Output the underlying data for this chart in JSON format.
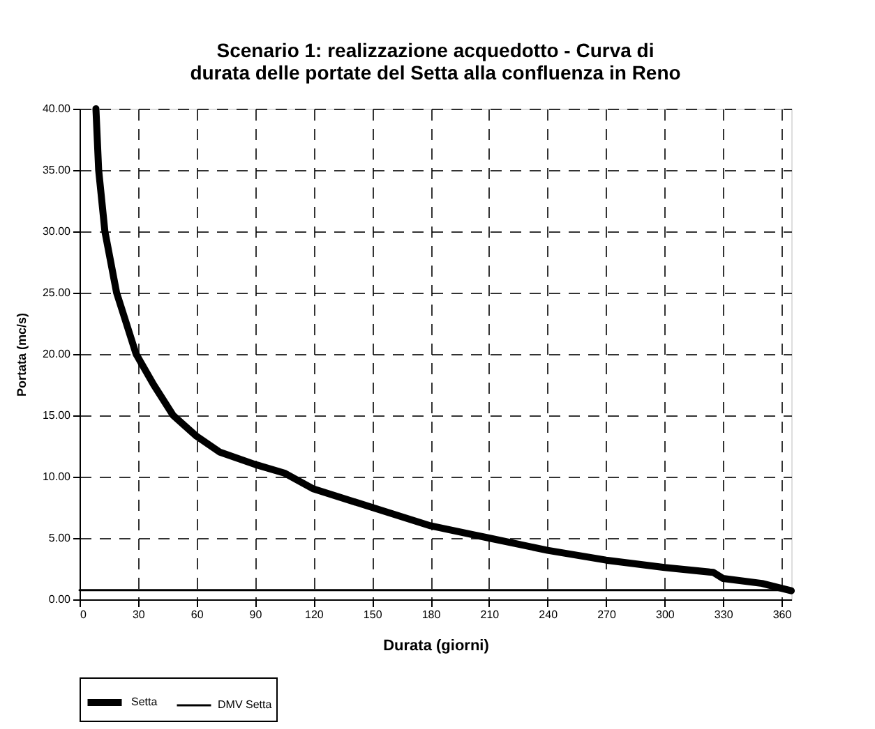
{
  "chart_data": {
    "type": "line",
    "title": "Scenario 1:  realizzazione acquedotto - Curva di\ndurata delle portate del Setta alla confluenza in Reno",
    "xlabel": "Durata (giorni)",
    "ylabel": "Portata (mc/s)",
    "series": [
      {
        "name": "Setta",
        "color": "#000000",
        "x": [
          8.4,
          9.8,
          13,
          19,
          29,
          38,
          48,
          60,
          72,
          90,
          105,
          120,
          150,
          180,
          210,
          240,
          270,
          300,
          325,
          330,
          350,
          365
        ],
        "values": [
          40,
          35,
          30,
          25,
          20,
          17.5,
          15,
          13.3,
          12,
          11,
          10.3,
          9,
          7.5,
          6,
          5,
          4,
          3.2,
          2.6,
          2.2,
          1.7,
          1.3,
          0.7
        ]
      },
      {
        "name": "DMV Setta",
        "color": "#000000",
        "x": [
          0,
          365
        ],
        "values": [
          0.75,
          0.75
        ]
      }
    ],
    "xlim": [
      0,
      365
    ],
    "xticks": [
      0,
      30,
      60,
      90,
      120,
      150,
      180,
      210,
      240,
      270,
      300,
      330,
      360
    ],
    "ylim": [
      0,
      40
    ],
    "yticks": [
      {
        "value": 0,
        "label": "0.00"
      },
      {
        "value": 5,
        "label": "5.00"
      },
      {
        "value": 10,
        "label": "10.00"
      },
      {
        "value": 15,
        "label": "15.00"
      },
      {
        "value": 20,
        "label": "20.00"
      },
      {
        "value": 25,
        "label": "25.00"
      },
      {
        "value": 30,
        "label": "30.00"
      },
      {
        "value": 35,
        "label": "35.00"
      },
      {
        "value": 40,
        "label": "40.00"
      }
    ],
    "grid": true,
    "legend": "bottom",
    "line_style": "solid",
    "marker": "none"
  }
}
